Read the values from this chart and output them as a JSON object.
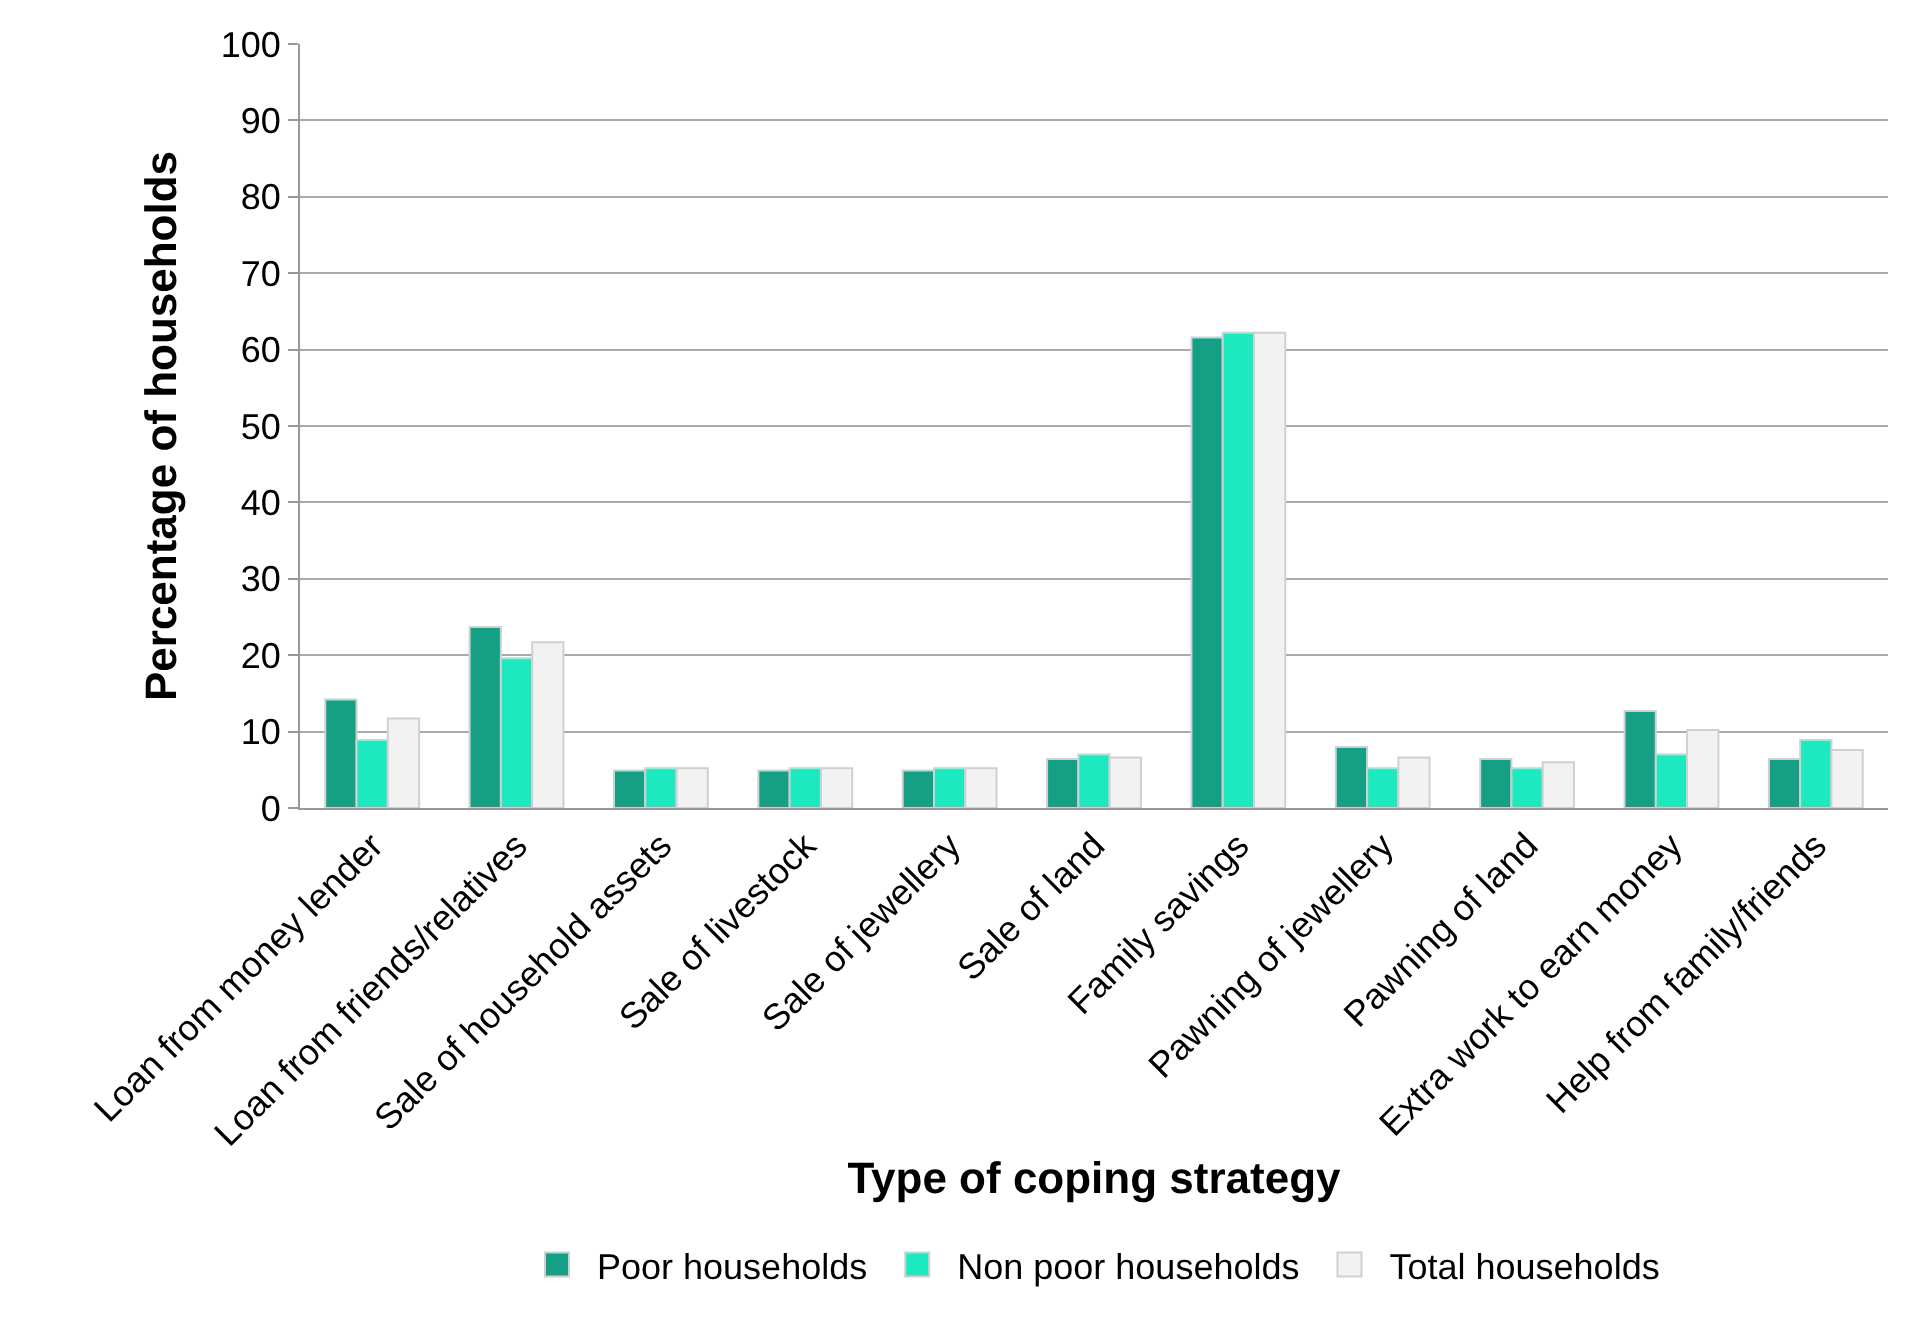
{
  "chart_data": {
    "type": "bar",
    "xlabel": "Type of coping strategy",
    "ylabel": "Percentage of households",
    "categories": [
      "Loan from money lender",
      "Loan from friends/relatives",
      "Sale of household assets",
      "Sale of livestock",
      "Sale of jewellery",
      "Sale of land",
      "Family savings",
      "Pawning of jewellery",
      "Pawning of land",
      "Extra work to earn money",
      "Help from family/friends"
    ],
    "series": [
      {
        "name": "Poor households",
        "color": "#15a086",
        "values": [
          14.2,
          23.7,
          4.9,
          4.9,
          4.9,
          6.4,
          61.6,
          8.0,
          6.4,
          12.7,
          6.4
        ]
      },
      {
        "name": "Non poor households",
        "color": "#1de9c0",
        "values": [
          8.9,
          19.6,
          5.2,
          5.2,
          5.2,
          7.0,
          62.2,
          5.2,
          5.2,
          7.0,
          8.9
        ]
      },
      {
        "name": "Total households",
        "color": "#f2f2f2",
        "values": [
          11.7,
          21.7,
          5.2,
          5.2,
          5.2,
          6.6,
          62.2,
          6.6,
          6.0,
          10.2,
          7.6
        ]
      }
    ],
    "ylim": [
      0,
      100
    ],
    "yticks": [
      0,
      10,
      20,
      30,
      40,
      50,
      60,
      70,
      80,
      90,
      100
    ],
    "grid": "y",
    "legend": "bottom"
  }
}
